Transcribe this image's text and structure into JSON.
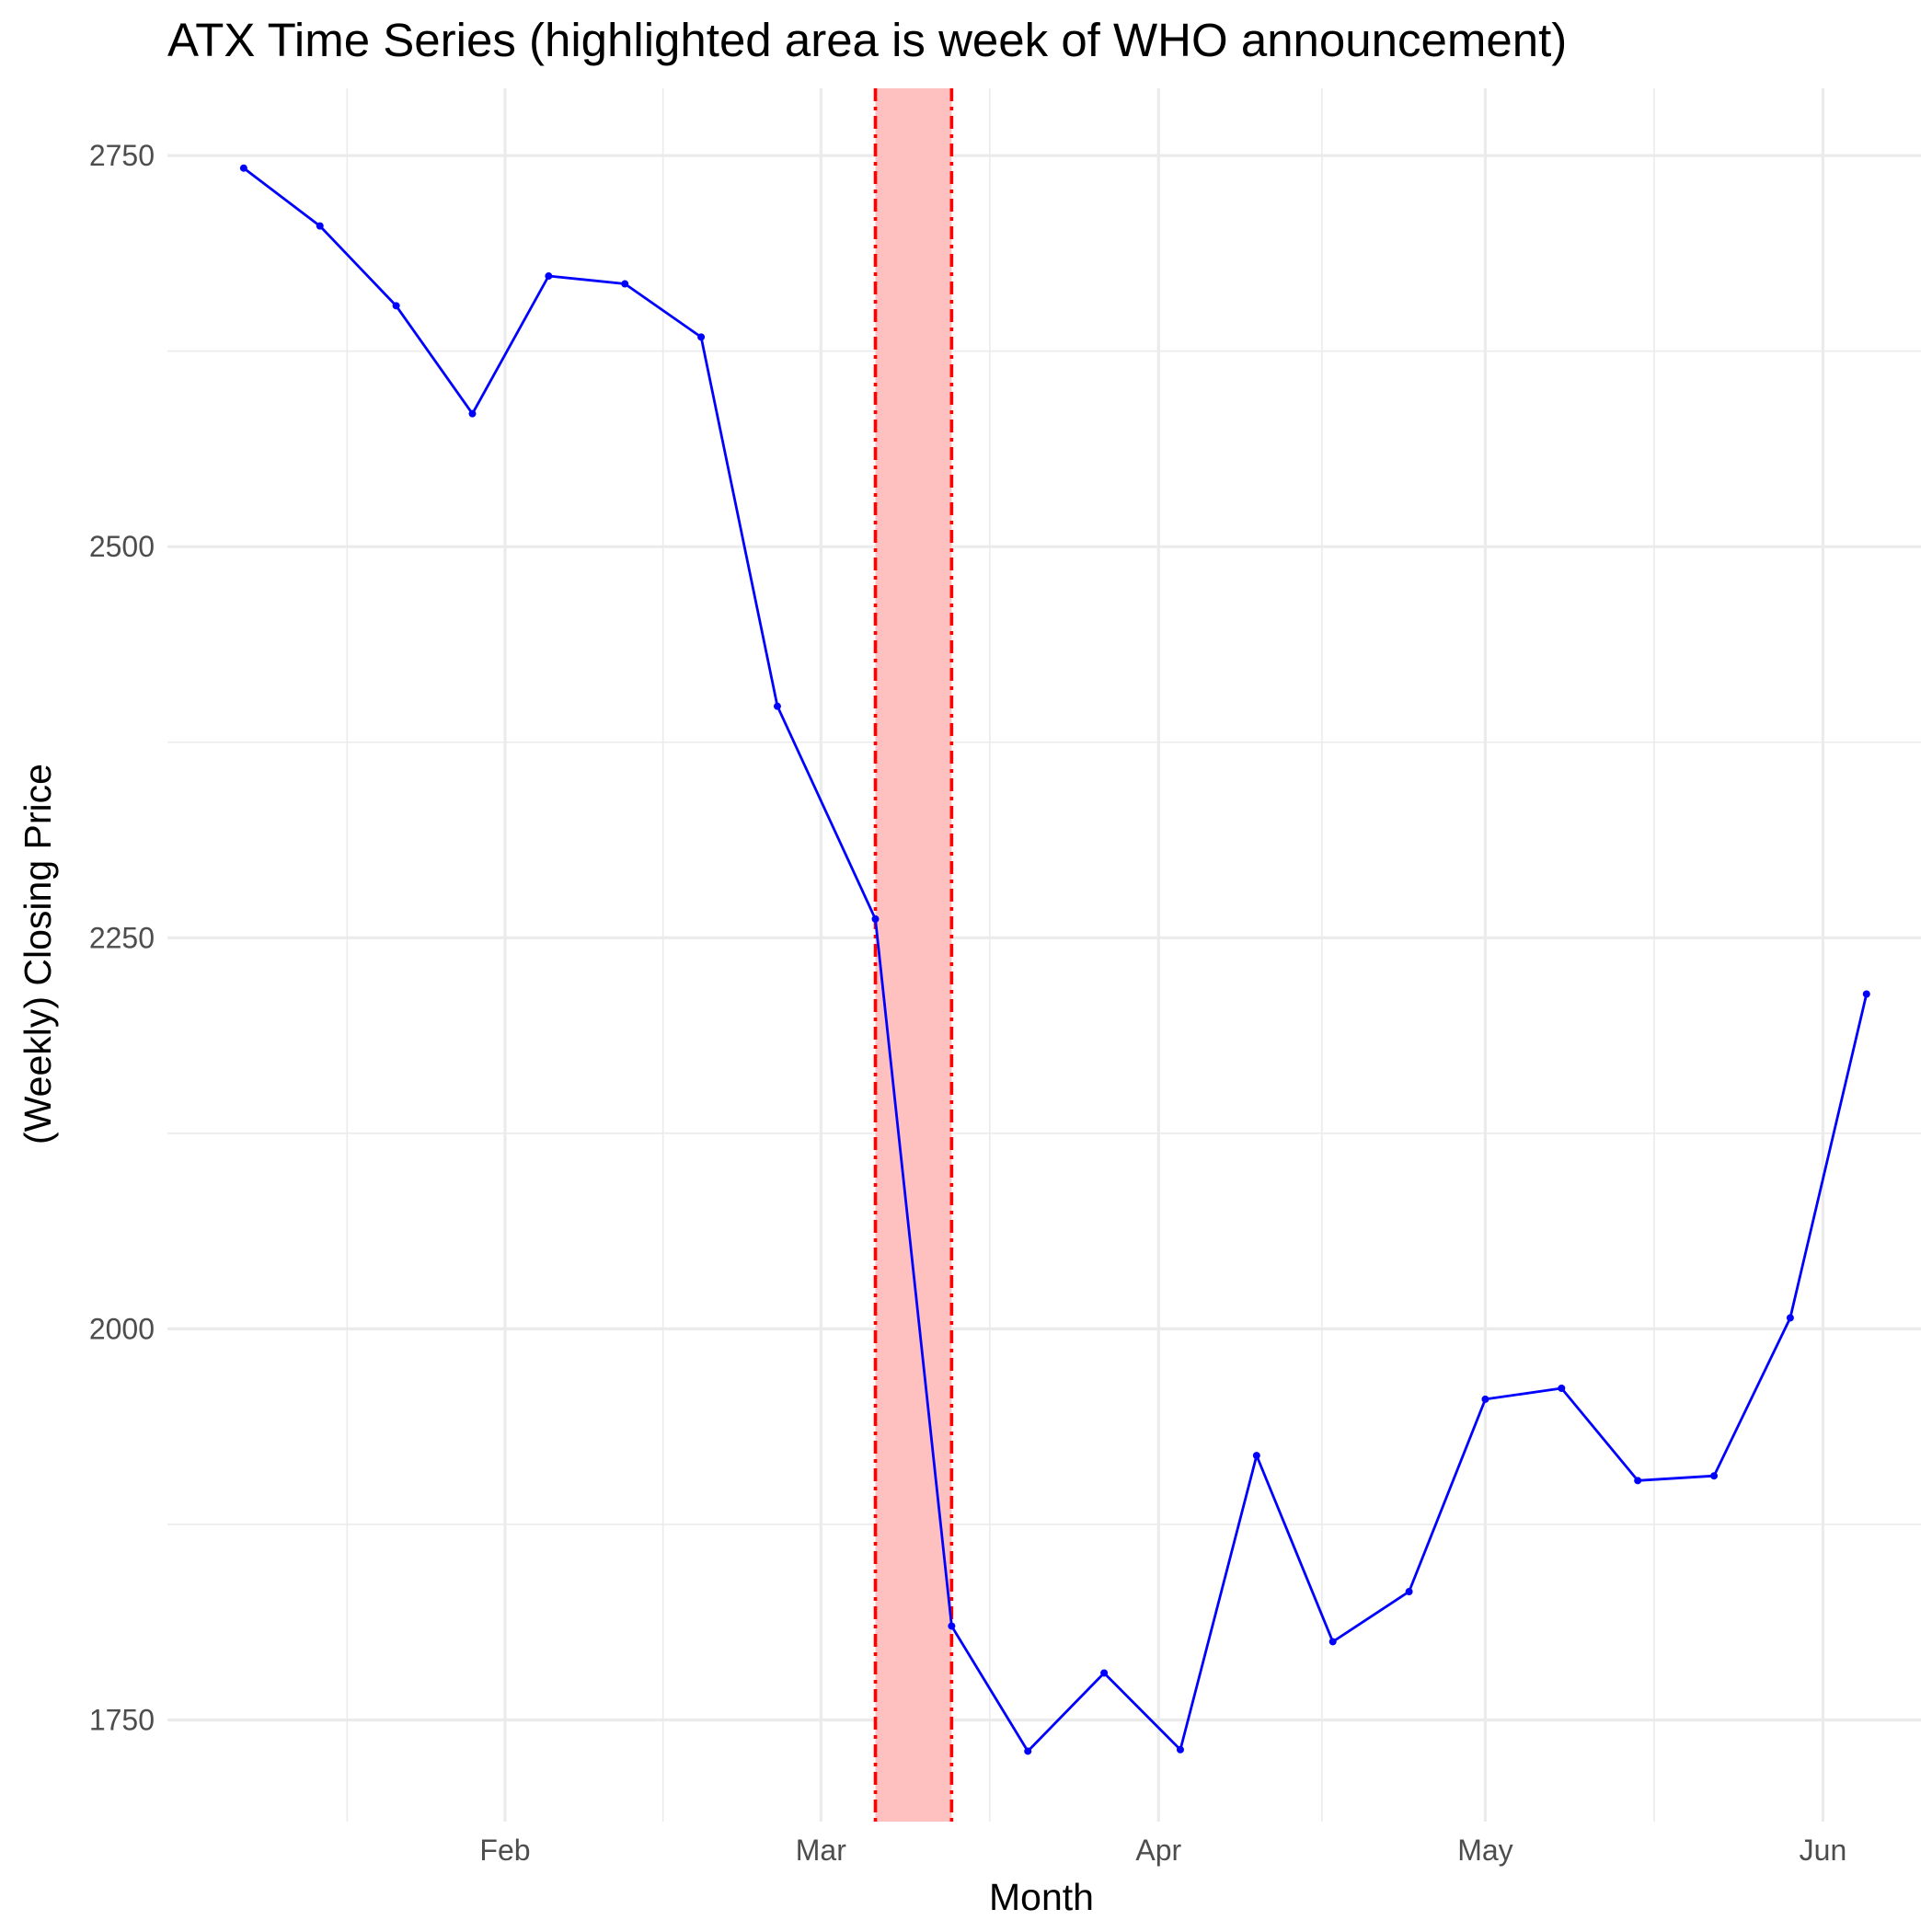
{
  "chart_data": {
    "type": "line",
    "title": "ATX Time Series (highlighted area is week of WHO announcement)",
    "xlabel": "Month",
    "ylabel": "(Weekly) Closing Price",
    "x_tick_labels": [
      "Feb",
      "Mar",
      "Apr",
      "May",
      "Jun"
    ],
    "x_tick_dates": [
      "2020-02-01",
      "2020-03-01",
      "2020-04-01",
      "2020-05-01",
      "2020-06-01"
    ],
    "y_ticks": [
      1750,
      2000,
      2250,
      2500,
      2750
    ],
    "xlim": [
      "2020-01-01",
      "2020-06-10"
    ],
    "ylim": [
      1685,
      2793
    ],
    "grid": true,
    "legend": "none",
    "series": [
      {
        "color": "#0000ff",
        "x": [
          "2020-01-08",
          "2020-01-15",
          "2020-01-22",
          "2020-01-29",
          "2020-02-05",
          "2020-02-12",
          "2020-02-19",
          "2020-02-26",
          "2020-03-06",
          "2020-03-13",
          "2020-03-20",
          "2020-03-27",
          "2020-04-03",
          "2020-04-10",
          "2020-04-17",
          "2020-04-24",
          "2020-05-01",
          "2020-05-08",
          "2020-05-15",
          "2020-05-22",
          "2020-05-29",
          "2020-06-05"
        ],
        "values": [
          2742,
          2705,
          2654,
          2585,
          2673,
          2668,
          2634,
          2398,
          2262,
          1810,
          1730,
          1780,
          1731,
          1919,
          1800,
          1832,
          1955,
          1962,
          1903,
          1906,
          2007,
          2214
        ]
      }
    ],
    "highlight": {
      "x_start": "2020-03-06",
      "x_end": "2020-03-13",
      "fill": "#ffc0c0",
      "line_color": "#ff0000",
      "line_style": "dashed"
    }
  }
}
